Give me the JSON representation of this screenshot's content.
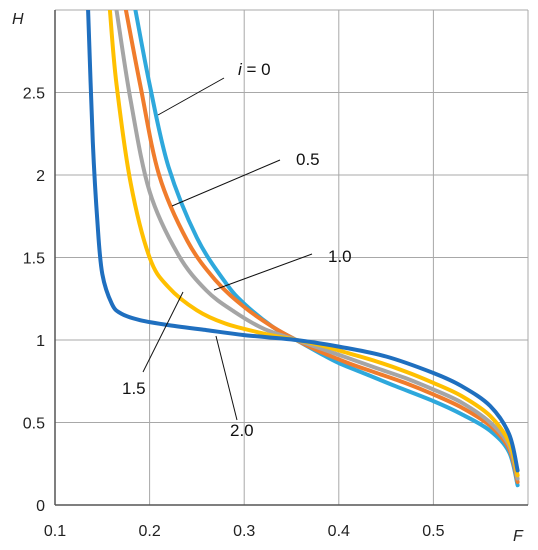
{
  "chart_data": {
    "type": "line",
    "xlabel": "F",
    "ylabel": "H",
    "xlim": [
      0.1,
      0.6
    ],
    "ylim": [
      0,
      3
    ],
    "grid": true,
    "x_ticks": [
      "0.1",
      "0.2",
      "0.3",
      "0.4",
      "0.5"
    ],
    "y_ticks": [
      "0",
      "0.5",
      "1",
      "1.5",
      "2",
      "2.5"
    ],
    "legend": "none",
    "annotations": [
      {
        "text_prefix": "i",
        "text": " = 0"
      },
      {
        "text": "0.5"
      },
      {
        "text": "1.0"
      },
      {
        "text": "1.5"
      },
      {
        "text": "2.0"
      }
    ],
    "series": [
      {
        "color": "#2ea8dc",
        "x": [
          0.185,
          0.2,
          0.22,
          0.25,
          0.28,
          0.3,
          0.33,
          0.355,
          0.38,
          0.4,
          0.43,
          0.46,
          0.5,
          0.53,
          0.56,
          0.58,
          0.589
        ],
        "y": [
          3.0,
          2.55,
          2.05,
          1.62,
          1.35,
          1.22,
          1.08,
          1.0,
          0.92,
          0.86,
          0.79,
          0.72,
          0.63,
          0.55,
          0.45,
          0.32,
          0.12
        ]
      },
      {
        "color": "#f07c2c",
        "x": [
          0.175,
          0.19,
          0.21,
          0.24,
          0.27,
          0.3,
          0.33,
          0.355,
          0.38,
          0.41,
          0.44,
          0.47,
          0.5,
          0.53,
          0.56,
          0.58,
          0.589
        ],
        "y": [
          3.0,
          2.55,
          2.0,
          1.6,
          1.36,
          1.2,
          1.08,
          1.0,
          0.93,
          0.86,
          0.8,
          0.74,
          0.67,
          0.59,
          0.48,
          0.34,
          0.14
        ]
      },
      {
        "color": "#a5a5a5",
        "x": [
          0.165,
          0.18,
          0.2,
          0.23,
          0.26,
          0.29,
          0.32,
          0.355,
          0.38,
          0.41,
          0.44,
          0.47,
          0.5,
          0.53,
          0.56,
          0.58,
          0.589
        ],
        "y": [
          3.0,
          2.45,
          1.9,
          1.52,
          1.3,
          1.17,
          1.07,
          1.0,
          0.95,
          0.89,
          0.83,
          0.77,
          0.7,
          0.62,
          0.5,
          0.36,
          0.16
        ]
      },
      {
        "color": "#ffc000",
        "x": [
          0.158,
          0.165,
          0.18,
          0.2,
          0.22,
          0.25,
          0.28,
          0.32,
          0.355,
          0.38,
          0.41,
          0.44,
          0.47,
          0.5,
          0.53,
          0.56,
          0.58,
          0.589
        ],
        "y": [
          3.0,
          2.55,
          1.95,
          1.5,
          1.32,
          1.18,
          1.1,
          1.04,
          1.0,
          0.97,
          0.92,
          0.87,
          0.81,
          0.74,
          0.66,
          0.54,
          0.38,
          0.18
        ]
      },
      {
        "color": "#1f6fbf",
        "x": [
          0.135,
          0.14,
          0.145,
          0.15,
          0.16,
          0.17,
          0.19,
          0.22,
          0.26,
          0.3,
          0.355,
          0.4,
          0.45,
          0.5,
          0.53,
          0.56,
          0.58,
          0.589
        ],
        "y": [
          3.0,
          2.2,
          1.7,
          1.4,
          1.22,
          1.16,
          1.12,
          1.09,
          1.06,
          1.03,
          1.0,
          0.96,
          0.9,
          0.8,
          0.72,
          0.6,
          0.43,
          0.21
        ]
      }
    ]
  }
}
